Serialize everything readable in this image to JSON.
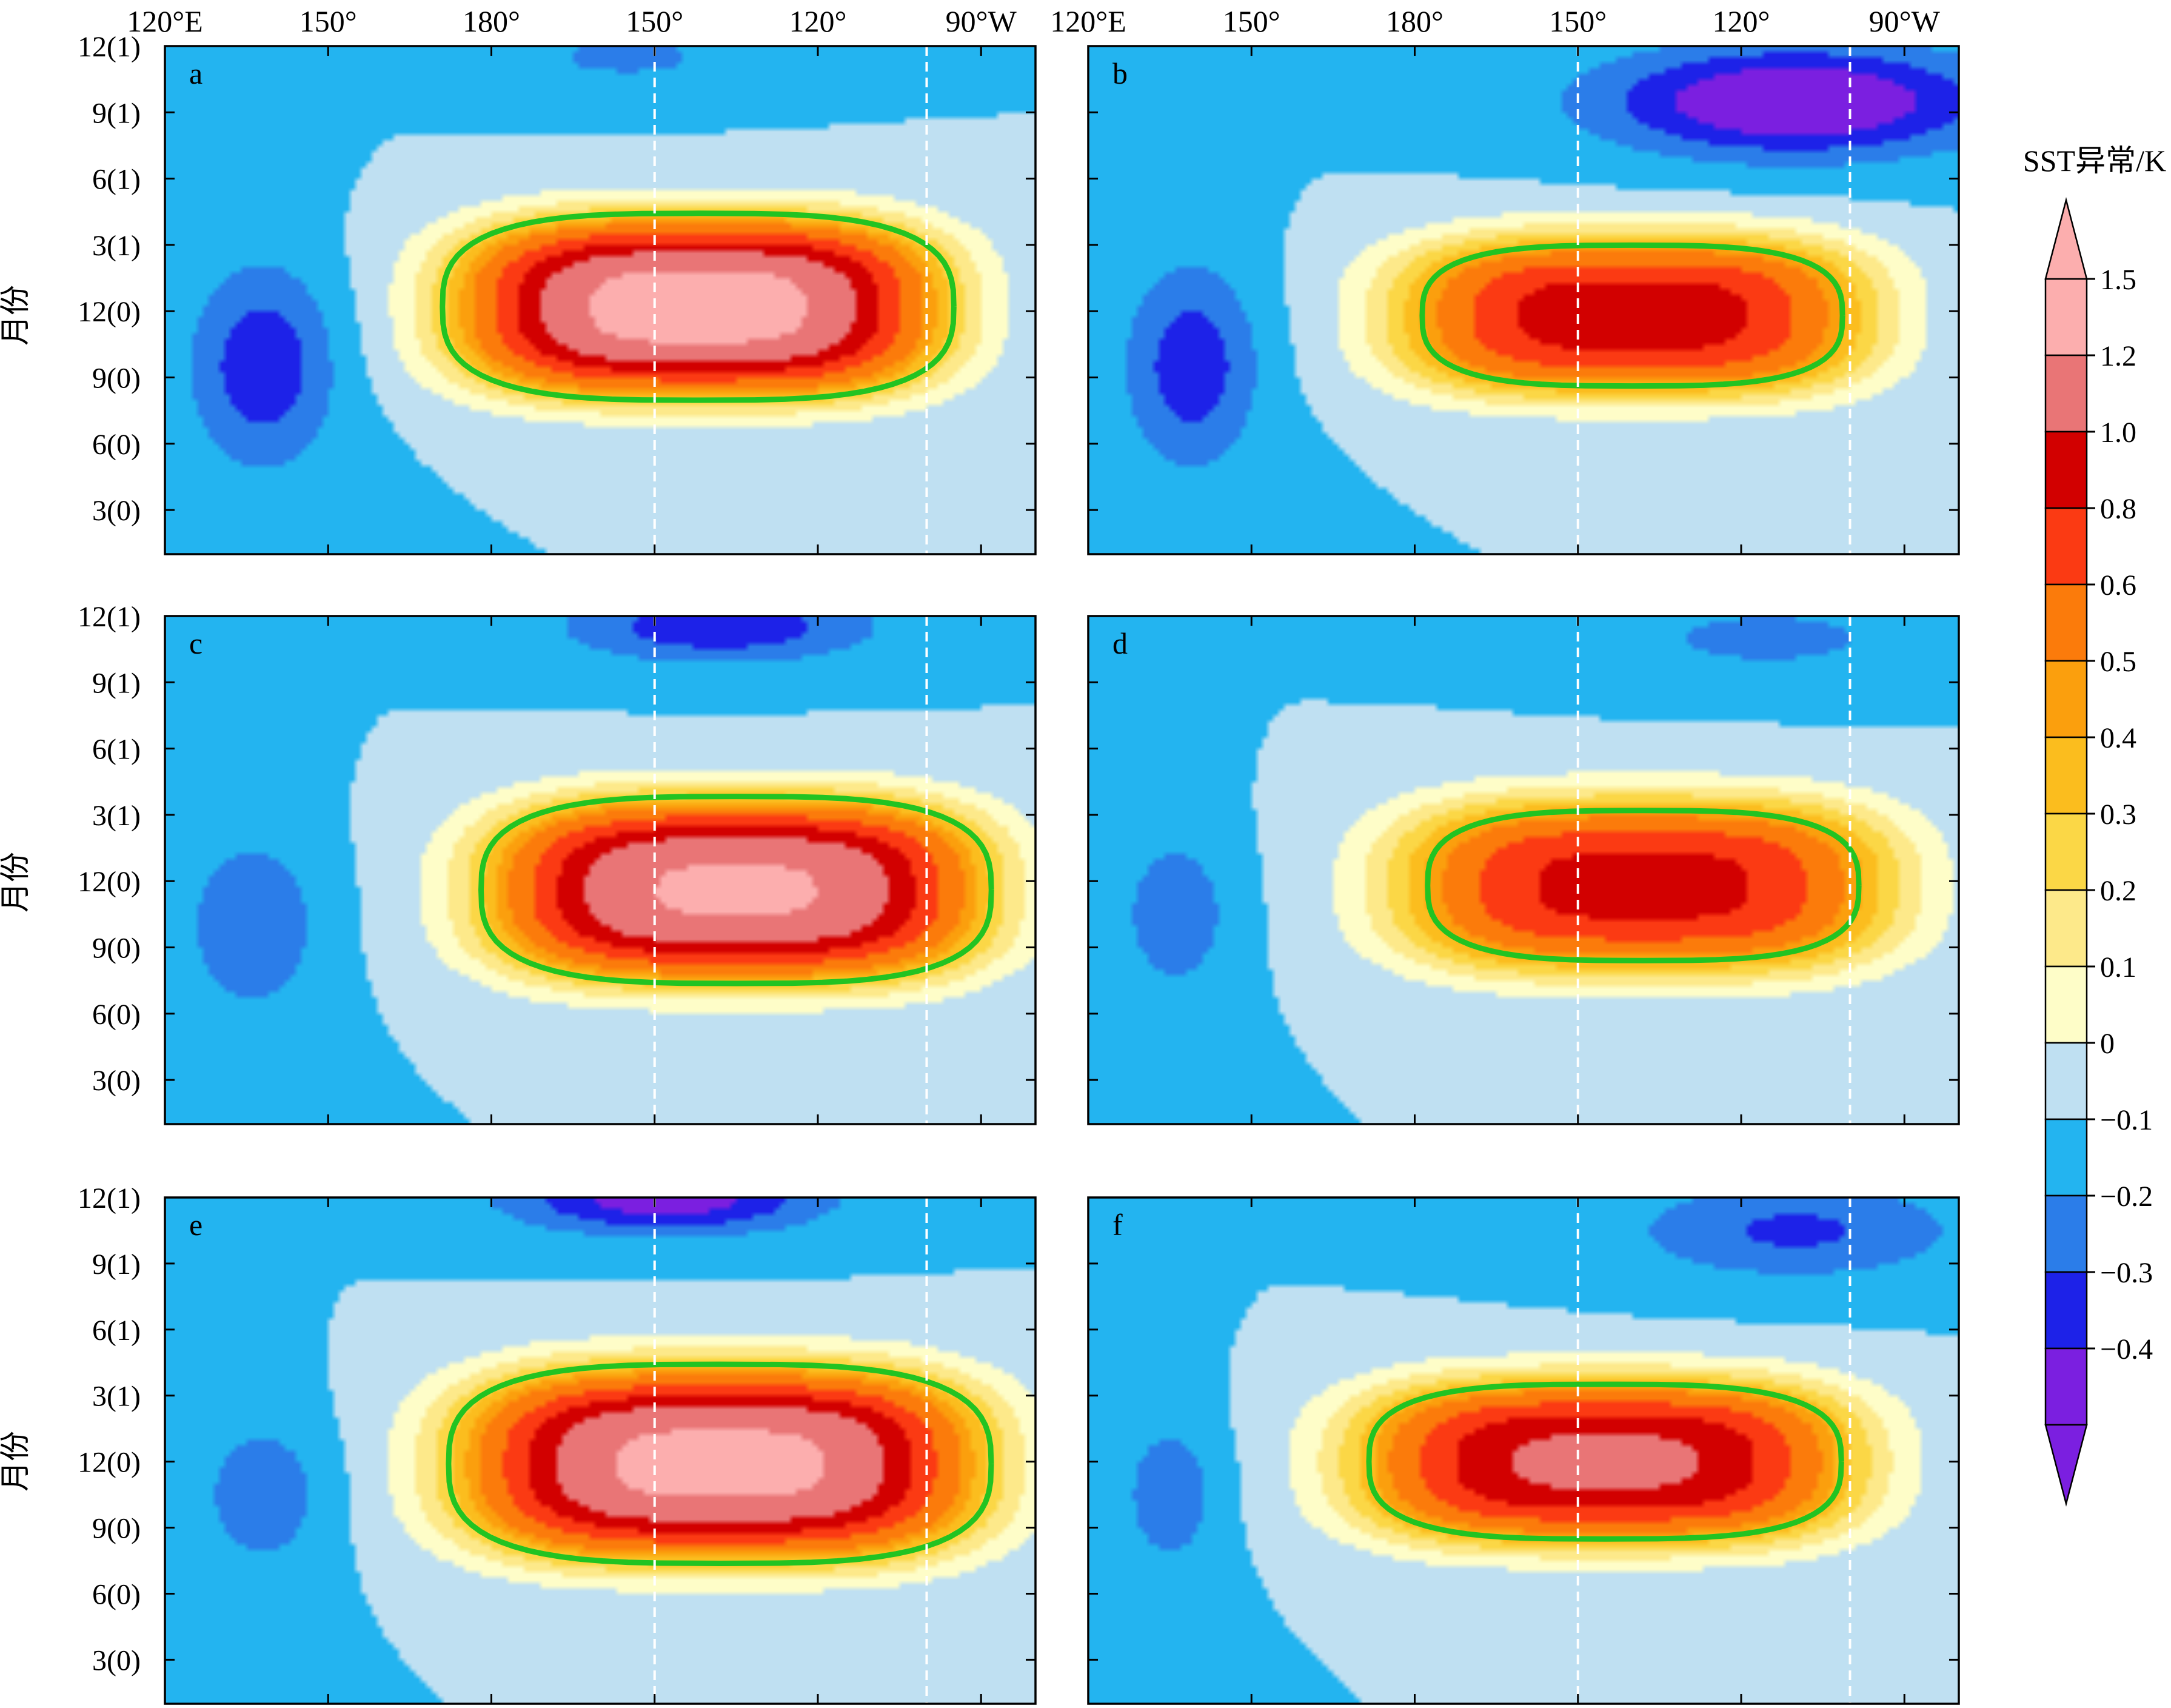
{
  "colors": {
    "levels": [
      "#7b1fe0",
      "#1d22e8",
      "#2b7de9",
      "#23b4f0",
      "#bfe0f2",
      "#fefdc8",
      "#fde98a",
      "#fbd746",
      "#fbbd1e",
      "#fb9f0d",
      "#fb7b0b",
      "#fb3a13",
      "#d20000",
      "#e97576",
      "#fcaeae"
    ],
    "contour": "#22c322",
    "reference_lines": "#ffffff"
  },
  "colorbar": {
    "title": "SST异常/K",
    "ticks": [
      "1.5",
      "1.2",
      "1.0",
      "0.8",
      "0.6",
      "0.5",
      "0.4",
      "0.3",
      "0.2",
      "0.1",
      "0",
      "−0.1",
      "−0.2",
      "−0.3",
      "−0.4"
    ]
  },
  "axes": {
    "x_ticks_top": [
      "120°E",
      "150°",
      "180°",
      "150°",
      "120°",
      "90°W"
    ],
    "y_ticks": [
      "12(1)",
      "9(1)",
      "6(1)",
      "3(1)",
      "12(0)",
      "9(0)",
      "6(0)",
      "3(0)"
    ],
    "ylabel": "月份"
  },
  "chart_data": {
    "type": "heatmap",
    "description_units": {
      "x": "longitude (degrees east, 120E–280E)",
      "y": "month index (0 = Jan of year 0, 23 = Dec of year 1)",
      "z": "SST anomaly (K)"
    },
    "xlim": [
      120,
      280
    ],
    "ylim": [
      1,
      24
    ],
    "contour_levels": [
      -0.4,
      -0.3,
      -0.2,
      -0.1,
      0,
      0.1,
      0.2,
      0.3,
      0.4,
      0.5,
      0.6,
      0.8,
      1.0,
      1.2,
      1.5
    ],
    "highlight_contour": 0.5,
    "reference_longitudes": [
      210,
      260
    ],
    "panels": [
      {
        "label": "a",
        "warm": {
          "x": 218,
          "y": 12.2,
          "sx": 40,
          "sy": 3.6,
          "amp": 1.65
        },
        "cold": [
          {
            "x": 138,
            "y": 9.5,
            "sx": 13,
            "sy": 4.5,
            "amp": -0.28
          },
          {
            "x": 205,
            "y": 23.5,
            "sx": 25,
            "sy": 1.5,
            "amp": -0.12
          }
        ]
      },
      {
        "label": "b",
        "warm": {
          "x": 220,
          "y": 11.8,
          "sx": 40,
          "sy": 3.3,
          "amp": 1.12
        },
        "cold": [
          {
            "x": 139,
            "y": 9.5,
            "sx": 12,
            "sy": 4.5,
            "amp": -0.27
          },
          {
            "x": 250,
            "y": 21.5,
            "sx": 35,
            "sy": 2.4,
            "amp": -0.45
          }
        ]
      },
      {
        "label": "c",
        "warm": {
          "x": 225,
          "y": 11.6,
          "sx": 41,
          "sy": 3.7,
          "amp": 1.55
        },
        "cold": [
          {
            "x": 136,
            "y": 10,
            "sx": 12,
            "sy": 4,
            "amp": -0.2
          },
          {
            "x": 222,
            "y": 23.5,
            "sx": 28,
            "sy": 1.6,
            "amp": -0.28
          }
        ]
      },
      {
        "label": "d",
        "warm": {
          "x": 222,
          "y": 11.8,
          "sx": 42,
          "sy": 3.6,
          "amp": 1.08
        },
        "cold": [
          {
            "x": 136,
            "y": 10.5,
            "sx": 10,
            "sy": 3.5,
            "amp": -0.18
          },
          {
            "x": 245,
            "y": 23,
            "sx": 30,
            "sy": 1.8,
            "amp": -0.13
          }
        ]
      },
      {
        "label": "e",
        "warm": {
          "x": 222,
          "y": 11.9,
          "sx": 43,
          "sy": 3.9,
          "amp": 1.6
        },
        "cold": [
          {
            "x": 138,
            "y": 10.5,
            "sx": 12,
            "sy": 3.5,
            "amp": -0.17
          },
          {
            "x": 212,
            "y": 24,
            "sx": 28,
            "sy": 1.6,
            "amp": -0.38
          }
        ]
      },
      {
        "label": "f",
        "warm": {
          "x": 215,
          "y": 12,
          "sx": 42,
          "sy": 3.4,
          "amp": 1.26
        },
        "cold": [
          {
            "x": 135,
            "y": 10.5,
            "sx": 9,
            "sy": 3.5,
            "amp": -0.17
          },
          {
            "x": 250,
            "y": 22.5,
            "sx": 30,
            "sy": 2.2,
            "amp": -0.22
          }
        ]
      }
    ]
  }
}
